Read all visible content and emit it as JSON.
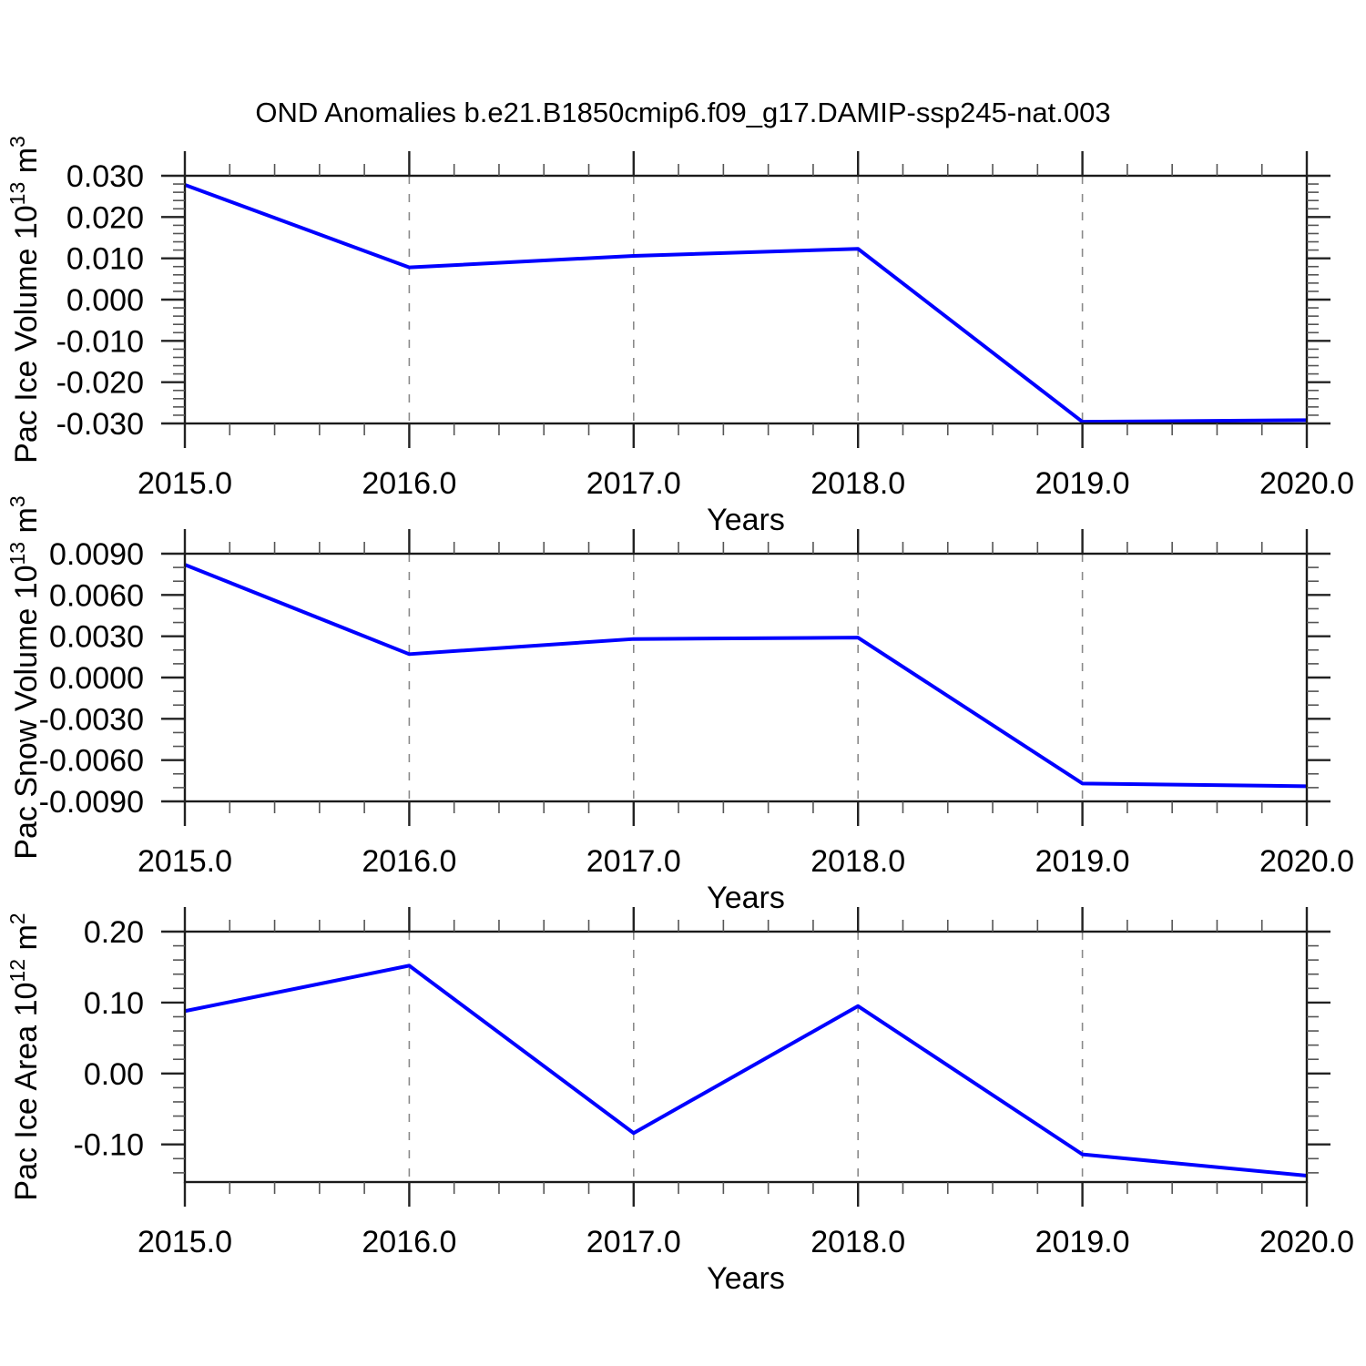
{
  "title": "OND Anomalies b.e21.B1850cmip6.f09_g17.DAMIP-ssp245-nat.003",
  "colors": {
    "line": "#0000ff",
    "axis": "#1a1a1a",
    "major_tick": "#222222",
    "minor_tick": "#555555",
    "grid": "#8a8a8a",
    "text": "#000000",
    "background": "#ffffff"
  },
  "chart_data": [
    {
      "type": "line",
      "x": [
        2015,
        2016,
        2017,
        2018,
        2019,
        2020
      ],
      "values": [
        0.0278,
        0.0078,
        0.0106,
        0.0123,
        -0.0296,
        -0.0292
      ],
      "xlabel": "Years",
      "ylabel_plain": "Pac Ice Volume 10^13 m^3",
      "ylabel_segments": [
        {
          "t": "Pac Ice Volume 10"
        },
        {
          "t": "13",
          "sup": true
        },
        {
          "t": " m"
        },
        {
          "t": "3",
          "sup": true
        }
      ],
      "xlim": [
        2015,
        2020
      ],
      "ylim": [
        -0.03,
        0.03
      ],
      "ytick_step": 0.01,
      "yminor_step": 0.002,
      "ytick_decimals": 3,
      "xtick_step": 1,
      "xminor_step": 0.2,
      "xtick_labels": [
        "2015.0",
        "2016.0",
        "2017.0",
        "2018.0",
        "2019.0",
        "2020.0"
      ],
      "grid_x": [
        2016,
        2017,
        2018,
        2019
      ],
      "legend": "none",
      "grid": "vertical-dashed"
    },
    {
      "type": "line",
      "x": [
        2015,
        2016,
        2017,
        2018,
        2019,
        2020
      ],
      "values": [
        0.0082,
        0.0017,
        0.0028,
        0.0029,
        -0.0077,
        -0.0079
      ],
      "xlabel": "Years",
      "ylabel_plain": "Pac Snow Volume 10^13 m^3",
      "ylabel_segments": [
        {
          "t": "Pac Snow Volume 10"
        },
        {
          "t": "13",
          "sup": true
        },
        {
          "t": " m"
        },
        {
          "t": "3",
          "sup": true
        }
      ],
      "xlim": [
        2015,
        2020
      ],
      "ylim": [
        -0.009,
        0.009
      ],
      "ytick_step": 0.003,
      "yminor_step": 0.001,
      "ytick_decimals": 4,
      "xtick_step": 1,
      "xminor_step": 0.2,
      "xtick_labels": [
        "2015.0",
        "2016.0",
        "2017.0",
        "2018.0",
        "2019.0",
        "2020.0"
      ],
      "grid_x": [
        2016,
        2017,
        2018,
        2019
      ],
      "legend": "none",
      "grid": "vertical-dashed"
    },
    {
      "type": "line",
      "x": [
        2015,
        2016,
        2017,
        2018,
        2019,
        2020
      ],
      "values": [
        0.088,
        0.152,
        -0.084,
        0.095,
        -0.114,
        -0.144
      ],
      "xlabel": "Years",
      "ylabel_plain": "Pac Ice Area 10^12 m^2",
      "ylabel_segments": [
        {
          "t": "Pac Ice Area 10"
        },
        {
          "t": "12",
          "sup": true
        },
        {
          "t": " m"
        },
        {
          "t": "2",
          "sup": true
        }
      ],
      "xlim": [
        2015,
        2020
      ],
      "ylim": [
        -0.153,
        0.2
      ],
      "ytick_step": 0.1,
      "yminor_step": 0.02,
      "ytick_decimals": 2,
      "xtick_step": 1,
      "xminor_step": 0.2,
      "xtick_labels": [
        "2015.0",
        "2016.0",
        "2017.0",
        "2018.0",
        "2019.0",
        "2020.0"
      ],
      "grid_x": [
        2016,
        2017,
        2018,
        2019
      ],
      "legend": "none",
      "grid": "vertical-dashed"
    }
  ]
}
